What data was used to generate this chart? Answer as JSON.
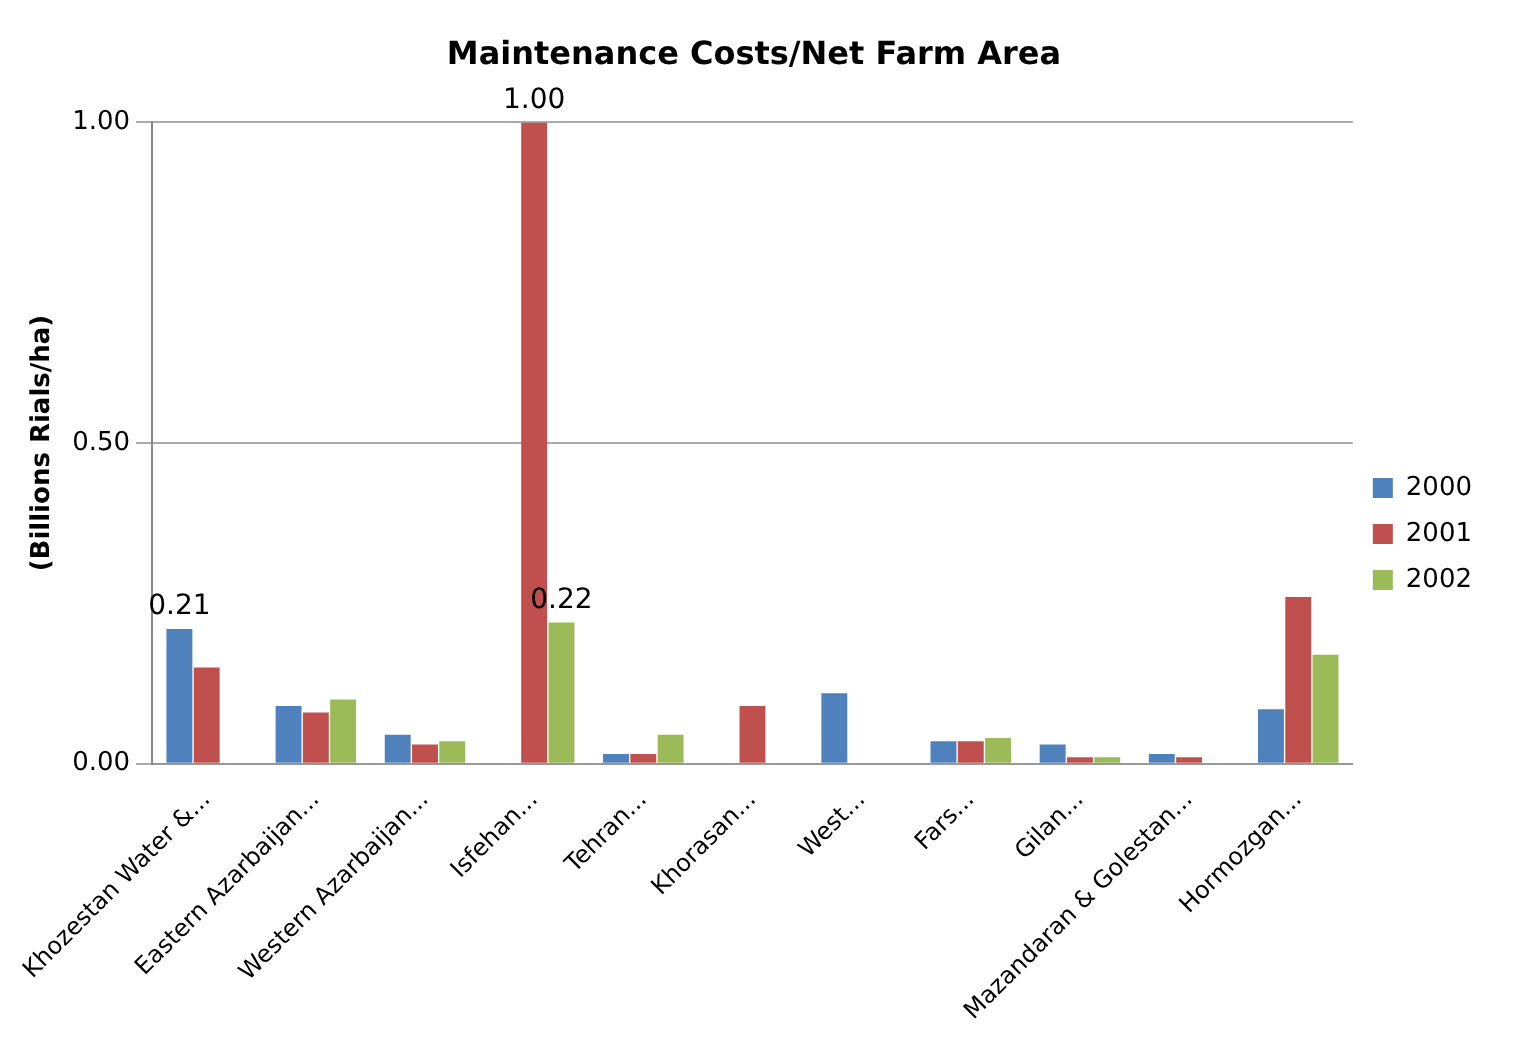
{
  "chart_data": {
    "type": "bar",
    "title": "Maintenance Costs/Net Farm Area",
    "ylabel": "(Billions Rials/ha)",
    "categories": [
      "Khozestan Water &...",
      "Eastern Azarbaijan...",
      "Western Azarbaijan...",
      "Isfehan...",
      "Tehran...",
      "Khorasan...",
      "West...",
      "Fars...",
      "Gilan...",
      "Mazandaran & Golestan...",
      "Hormozgan..."
    ],
    "series": [
      {
        "name": "2000",
        "color": "#4f81bd",
        "values": [
          0.21,
          0.09,
          0.045,
          0,
          0.015,
          0,
          0.11,
          0.035,
          0.03,
          0.015,
          0.085
        ],
        "value_labels": [
          "0.21",
          null,
          null,
          null,
          null,
          null,
          null,
          null,
          null,
          null,
          null
        ]
      },
      {
        "name": "2001",
        "color": "#c0504d",
        "values": [
          0.15,
          0.08,
          0.03,
          1.0,
          0.015,
          0.09,
          0,
          0.035,
          0.01,
          0.01,
          0.26
        ],
        "value_labels": [
          null,
          null,
          null,
          "1.00",
          null,
          null,
          null,
          null,
          null,
          null,
          null
        ]
      },
      {
        "name": "2002",
        "color": "#9bbb59",
        "values": [
          0,
          0.1,
          0.035,
          0.22,
          0.045,
          0,
          0,
          0.04,
          0.01,
          0,
          0.17
        ],
        "value_labels": [
          null,
          null,
          null,
          "0.22",
          null,
          null,
          null,
          null,
          null,
          null,
          null
        ]
      }
    ],
    "ylim": [
      0,
      1
    ],
    "yticks": [
      {
        "value": 0,
        "label": "0.00"
      },
      {
        "value": 0.5,
        "label": "0.50"
      },
      {
        "value": 1,
        "label": "1.00"
      }
    ],
    "grid": "y",
    "legend": "right"
  }
}
